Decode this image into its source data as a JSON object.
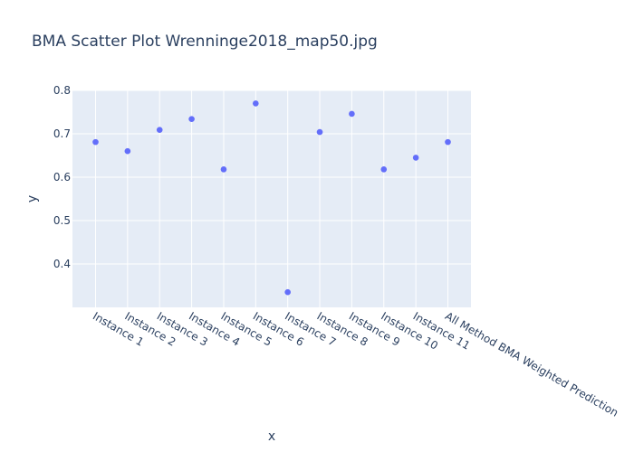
{
  "chart_data": {
    "type": "scatter",
    "title": "BMA Scatter Plot Wrenninge2018_map50.jpg",
    "xlabel": "x",
    "ylabel": "y",
    "categories": [
      "Instance 1",
      "Instance 2",
      "Instance 3",
      "Instance 4",
      "Instance 5",
      "Instance 6",
      "Instance 7",
      "Instance 8",
      "Instance 9",
      "Instance 10",
      "Instance 11",
      "All Method BMA Weighted Prediction"
    ],
    "values": [
      0.681,
      0.66,
      0.709,
      0.734,
      0.618,
      0.77,
      0.335,
      0.704,
      0.746,
      0.618,
      0.645,
      0.681
    ],
    "ylim": [
      0.3,
      0.8
    ],
    "yticks": [
      0.4,
      0.5,
      0.6,
      0.7,
      0.8
    ],
    "ytick_labels": [
      "0.4",
      "0.5",
      "0.6",
      "0.7",
      "0.8"
    ],
    "grid": true,
    "legend": "none",
    "colors": {
      "marker": "#636efa",
      "plot_background": "#e5ecf6",
      "paper_background": "#ffffff",
      "grid": "#ffffff",
      "text": "#2a3f5f"
    }
  }
}
